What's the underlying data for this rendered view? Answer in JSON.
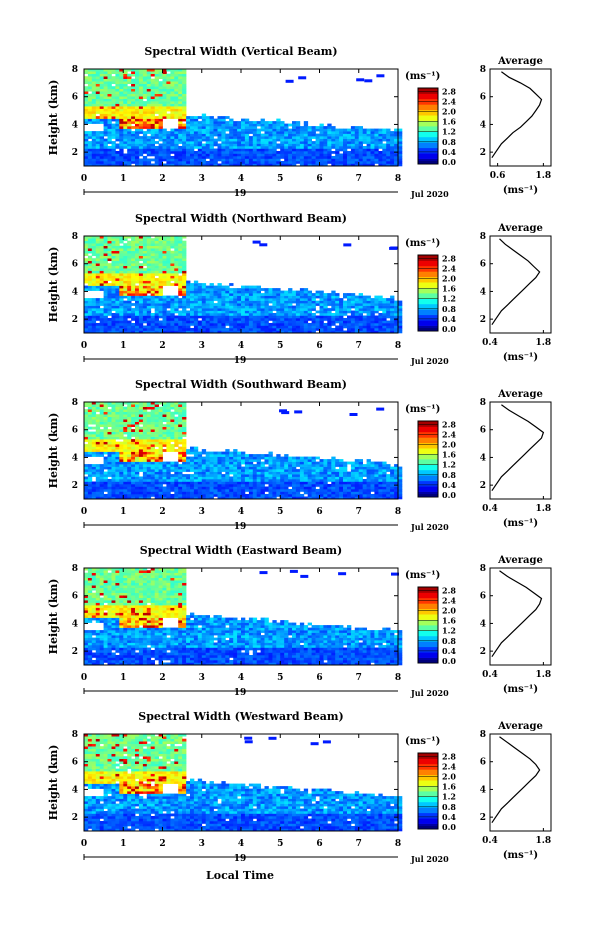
{
  "figure": {
    "xlabel": "Local Time",
    "date_day": "19",
    "date_month": "Jul 2020",
    "colorbar_unit": "(ms⁻¹)",
    "avg_xlabel": "(ms⁻¹)",
    "avg_title": "Average"
  },
  "chart_data": [
    {
      "type": "heatmap",
      "title": "Spectral Width (Vertical Beam)",
      "xlabel": "",
      "ylabel": "Height (km)",
      "xlim": [
        0,
        8
      ],
      "ylim": [
        1,
        8
      ],
      "x_ticks": [
        "0",
        "1",
        "2",
        "3",
        "4",
        "5",
        "6",
        "7",
        "8"
      ],
      "y_ticks": [
        "2",
        "4",
        "6",
        "8"
      ],
      "colorbar_ticks": [
        "0.0",
        "0.4",
        "0.8",
        "1.2",
        "1.6",
        "2.0",
        "2.4",
        "2.8"
      ],
      "avg_x_ticks": [
        "0.6",
        "1.8"
      ],
      "avg_xlim": [
        0.4,
        2.0
      ],
      "avg_profile": [
        [
          0.45,
          1.6
        ],
        [
          0.55,
          2.0
        ],
        [
          0.7,
          2.6
        ],
        [
          0.85,
          3.0
        ],
        [
          1.0,
          3.4
        ],
        [
          1.2,
          3.8
        ],
        [
          1.35,
          4.2
        ],
        [
          1.5,
          4.6
        ],
        [
          1.6,
          5.0
        ],
        [
          1.7,
          5.4
        ],
        [
          1.75,
          5.8
        ],
        [
          1.6,
          6.2
        ],
        [
          1.45,
          6.6
        ],
        [
          1.2,
          7.0
        ],
        [
          0.9,
          7.4
        ],
        [
          0.7,
          7.8
        ]
      ]
    },
    {
      "type": "heatmap",
      "title": "Spectral Width (Northward Beam)",
      "xlabel": "",
      "ylabel": "Height (km)",
      "xlim": [
        0,
        8
      ],
      "ylim": [
        1,
        8
      ],
      "x_ticks": [
        "0",
        "1",
        "2",
        "3",
        "4",
        "5",
        "6",
        "7",
        "8"
      ],
      "y_ticks": [
        "2",
        "4",
        "6",
        "8"
      ],
      "colorbar_ticks": [
        "0.0",
        "0.4",
        "0.8",
        "1.2",
        "1.6",
        "2.0",
        "2.4",
        "2.8"
      ],
      "avg_x_ticks": [
        "0.4",
        "1.8"
      ],
      "avg_xlim": [
        0.4,
        2.0
      ],
      "avg_profile": [
        [
          0.45,
          1.6
        ],
        [
          0.55,
          2.0
        ],
        [
          0.7,
          2.6
        ],
        [
          0.85,
          3.0
        ],
        [
          1.0,
          3.4
        ],
        [
          1.15,
          3.8
        ],
        [
          1.3,
          4.2
        ],
        [
          1.45,
          4.6
        ],
        [
          1.6,
          5.0
        ],
        [
          1.7,
          5.4
        ],
        [
          1.55,
          5.8
        ],
        [
          1.4,
          6.2
        ],
        [
          1.2,
          6.6
        ],
        [
          1.0,
          7.0
        ],
        [
          0.8,
          7.4
        ],
        [
          0.65,
          7.8
        ]
      ]
    },
    {
      "type": "heatmap",
      "title": "Spectral Width (Southward Beam)",
      "xlabel": "",
      "ylabel": "Height (km)",
      "xlim": [
        0,
        8
      ],
      "ylim": [
        1,
        8
      ],
      "x_ticks": [
        "0",
        "1",
        "2",
        "3",
        "4",
        "5",
        "6",
        "7",
        "8"
      ],
      "y_ticks": [
        "2",
        "4",
        "6",
        "8"
      ],
      "colorbar_ticks": [
        "0.0",
        "0.4",
        "0.8",
        "1.2",
        "1.6",
        "2.0",
        "2.4",
        "2.8"
      ],
      "avg_x_ticks": [
        "0.4",
        "1.8"
      ],
      "avg_xlim": [
        0.4,
        2.0
      ],
      "avg_profile": [
        [
          0.45,
          1.6
        ],
        [
          0.55,
          2.0
        ],
        [
          0.7,
          2.6
        ],
        [
          0.85,
          3.0
        ],
        [
          1.0,
          3.4
        ],
        [
          1.15,
          3.8
        ],
        [
          1.3,
          4.2
        ],
        [
          1.45,
          4.6
        ],
        [
          1.6,
          5.0
        ],
        [
          1.75,
          5.4
        ],
        [
          1.8,
          5.8
        ],
        [
          1.6,
          6.2
        ],
        [
          1.4,
          6.6
        ],
        [
          1.15,
          7.0
        ],
        [
          0.9,
          7.4
        ],
        [
          0.7,
          7.8
        ]
      ]
    },
    {
      "type": "heatmap",
      "title": "Spectral Width (Eastward Beam)",
      "xlabel": "",
      "ylabel": "Height (km)",
      "xlim": [
        0,
        8
      ],
      "ylim": [
        1,
        8
      ],
      "x_ticks": [
        "0",
        "1",
        "2",
        "3",
        "4",
        "5",
        "6",
        "7",
        "8"
      ],
      "y_ticks": [
        "2",
        "4",
        "6",
        "8"
      ],
      "colorbar_ticks": [
        "0.0",
        "0.4",
        "0.8",
        "1.2",
        "1.6",
        "2.0",
        "2.4",
        "2.8"
      ],
      "avg_x_ticks": [
        "0.4",
        "1.8"
      ],
      "avg_xlim": [
        0.4,
        2.0
      ],
      "avg_profile": [
        [
          0.45,
          1.6
        ],
        [
          0.55,
          2.0
        ],
        [
          0.7,
          2.6
        ],
        [
          0.85,
          3.0
        ],
        [
          1.0,
          3.4
        ],
        [
          1.15,
          3.8
        ],
        [
          1.3,
          4.2
        ],
        [
          1.45,
          4.6
        ],
        [
          1.6,
          5.0
        ],
        [
          1.7,
          5.4
        ],
        [
          1.75,
          5.8
        ],
        [
          1.55,
          6.2
        ],
        [
          1.35,
          6.6
        ],
        [
          1.1,
          7.0
        ],
        [
          0.85,
          7.4
        ],
        [
          0.65,
          7.8
        ]
      ]
    },
    {
      "type": "heatmap",
      "title": "Spectral Width (Westward Beam)",
      "xlabel": "Local Time",
      "ylabel": "Height (km)",
      "xlim": [
        0,
        8
      ],
      "ylim": [
        1,
        8
      ],
      "x_ticks": [
        "0",
        "1",
        "2",
        "3",
        "4",
        "5",
        "6",
        "7",
        "8"
      ],
      "y_ticks": [
        "2",
        "4",
        "6",
        "8"
      ],
      "colorbar_ticks": [
        "0.0",
        "0.4",
        "0.8",
        "1.2",
        "1.6",
        "2.0",
        "2.4",
        "2.8"
      ],
      "avg_x_ticks": [
        "0.4",
        "1.8"
      ],
      "avg_xlim": [
        0.4,
        2.0
      ],
      "avg_profile": [
        [
          0.45,
          1.6
        ],
        [
          0.55,
          2.0
        ],
        [
          0.7,
          2.6
        ],
        [
          0.85,
          3.0
        ],
        [
          1.0,
          3.4
        ],
        [
          1.15,
          3.8
        ],
        [
          1.3,
          4.2
        ],
        [
          1.45,
          4.6
        ],
        [
          1.6,
          5.0
        ],
        [
          1.7,
          5.4
        ],
        [
          1.6,
          5.8
        ],
        [
          1.45,
          6.2
        ],
        [
          1.25,
          6.6
        ],
        [
          1.05,
          7.0
        ],
        [
          0.85,
          7.4
        ],
        [
          0.65,
          7.8
        ]
      ]
    }
  ]
}
